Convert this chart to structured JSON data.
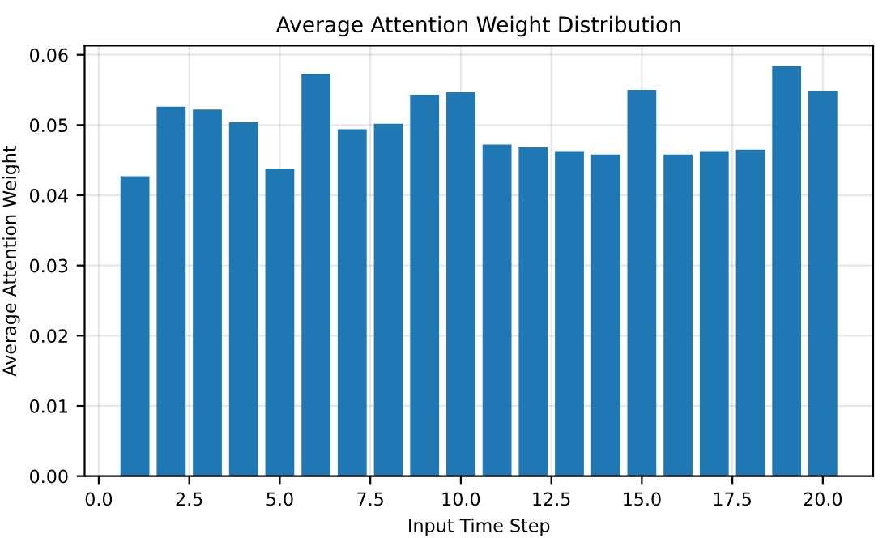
{
  "chart_data": {
    "type": "bar",
    "title": "Average Attention Weight Distribution",
    "xlabel": "Input Time Step",
    "ylabel": "Average Attention Weight",
    "x": [
      1,
      2,
      3,
      4,
      5,
      6,
      7,
      8,
      9,
      10,
      11,
      12,
      13,
      14,
      15,
      16,
      17,
      18,
      19,
      20
    ],
    "values": [
      0.0427,
      0.0526,
      0.0522,
      0.0504,
      0.0438,
      0.0573,
      0.0494,
      0.0502,
      0.0543,
      0.0547,
      0.0472,
      0.0468,
      0.0463,
      0.0458,
      0.055,
      0.0458,
      0.0463,
      0.0465,
      0.0584,
      0.0549
    ],
    "color": "#1f77b4",
    "xlim": [
      -0.39,
      21.39
    ],
    "xticks": [
      {
        "value": 0,
        "label": "0.0"
      },
      {
        "value": 2.5,
        "label": "2.5"
      },
      {
        "value": 5,
        "label": "5.0"
      },
      {
        "value": 7.5,
        "label": "7.5"
      },
      {
        "value": 10,
        "label": "10.0"
      },
      {
        "value": 12.5,
        "label": "12.5"
      },
      {
        "value": 15,
        "label": "15.0"
      },
      {
        "value": 17.5,
        "label": "17.5"
      },
      {
        "value": 20,
        "label": "20.0"
      }
    ],
    "ylim": [
      0,
      0.0613
    ],
    "yticks": [
      {
        "value": 0,
        "label": "0.00"
      },
      {
        "value": 0.01,
        "label": "0.01"
      },
      {
        "value": 0.02,
        "label": "0.02"
      },
      {
        "value": 0.03,
        "label": "0.03"
      },
      {
        "value": 0.04,
        "label": "0.04"
      },
      {
        "value": 0.05,
        "label": "0.05"
      },
      {
        "value": 0.06,
        "label": "0.06"
      }
    ],
    "grid": true
  }
}
